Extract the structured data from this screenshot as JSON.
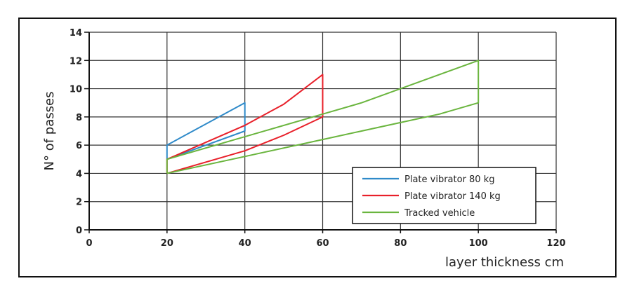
{
  "chart_data": {
    "type": "line",
    "title": "",
    "xlabel": "layer thickness cm",
    "ylabel": "N° of passes",
    "xlim": [
      0,
      120
    ],
    "ylim": [
      0,
      14
    ],
    "xticks": [
      0,
      20,
      40,
      60,
      80,
      100,
      120
    ],
    "yticks": [
      0,
      2,
      4,
      6,
      8,
      10,
      12,
      14
    ],
    "grid": true,
    "legend_position": "bottom-right",
    "series": [
      {
        "name": "Plate vibrator 80 kg",
        "color": "#2f8ac9",
        "points": [
          [
            20,
            5
          ],
          [
            20,
            6
          ],
          [
            40,
            9
          ],
          [
            40,
            7
          ],
          [
            20,
            5
          ]
        ]
      },
      {
        "name": "Plate vibrator 140 kg",
        "color": "#e8202a",
        "points": [
          [
            20,
            4
          ],
          [
            20,
            5
          ],
          [
            30,
            6.2
          ],
          [
            40,
            7.4
          ],
          [
            50,
            8.9
          ],
          [
            60,
            11
          ],
          [
            60,
            8
          ],
          [
            50,
            6.7
          ],
          [
            40,
            5.6
          ],
          [
            30,
            4.8
          ],
          [
            20,
            4
          ]
        ]
      },
      {
        "name": "Tracked vehicle",
        "color": "#6ab53e",
        "points": [
          [
            20,
            4
          ],
          [
            20,
            5
          ],
          [
            40,
            6.6
          ],
          [
            60,
            8.2
          ],
          [
            70,
            9
          ],
          [
            80,
            10
          ],
          [
            100,
            12
          ],
          [
            100,
            9
          ],
          [
            90,
            8.2
          ],
          [
            80,
            7.6
          ],
          [
            70,
            7
          ],
          [
            60,
            6.4
          ],
          [
            40,
            5.2
          ],
          [
            20,
            4
          ]
        ]
      }
    ]
  }
}
